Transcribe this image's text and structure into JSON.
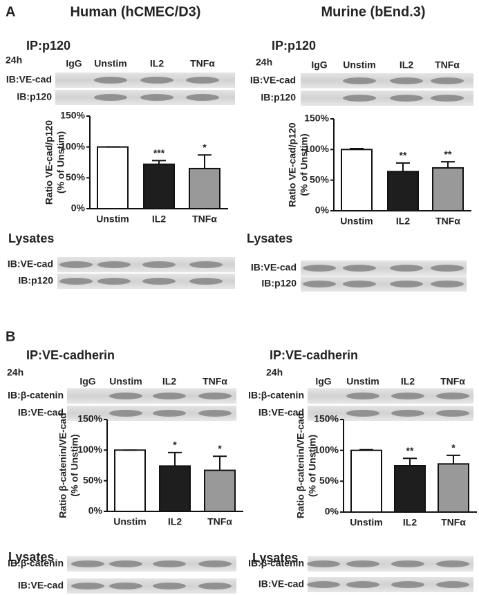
{
  "figure": {
    "panels": [
      {
        "label": "A",
        "titles": [
          "Human (hCMEC/D3)",
          "Murine (bEnd.3)"
        ]
      },
      {
        "label": "B"
      }
    ],
    "blots": [
      {
        "title": "IP:p120",
        "time": "24h",
        "lanes": [
          "IgG",
          "Unstim",
          "IL2",
          "TNFα"
        ],
        "rows": [
          "IB:VE-cad",
          "IB:p120"
        ]
      },
      {
        "title": "IP:p120",
        "time": "24h",
        "lanes": [
          "IgG",
          "Unstim",
          "IL2",
          "TNFα"
        ],
        "rows": [
          "IB:VE-cad",
          "IB:p120"
        ]
      },
      {
        "title": "Lysates",
        "rows": [
          "IB:VE-cad",
          "IB:p120"
        ]
      },
      {
        "title": "Lysates",
        "rows": [
          "IB:VE-cad",
          "IB:p120"
        ]
      },
      {
        "title": "IP:VE-cadherin",
        "time": "24h",
        "lanes": [
          "IgG",
          "Unstim",
          "IL2",
          "TNFα"
        ],
        "rows": [
          "IB:β-catenin",
          "IB:VE-cad"
        ]
      },
      {
        "title": "IP:VE-cadherin",
        "time": "24h",
        "lanes": [
          "IgG",
          "Unstim",
          "IL2",
          "TNFα"
        ],
        "rows": [
          "IB:β-catenin",
          "IB:VE-cad"
        ]
      },
      {
        "title": "Lysates",
        "rows": [
          "IB:β-catenin",
          "IB:VE-cad"
        ]
      },
      {
        "title": "Lysates",
        "rows": [
          "IB:β-catenin",
          "IB:VE-cad"
        ]
      }
    ]
  },
  "chart_data": [
    {
      "type": "bar",
      "ylabel": [
        "Ratio VE-cad/p120",
        "(% of Unstim)"
      ],
      "categories": [
        "Unstim",
        "IL2",
        "TNFα"
      ],
      "values": [
        100,
        72,
        65
      ],
      "errors": [
        0,
        6,
        22
      ],
      "colors": [
        "#ffffff",
        "#1e1e1e",
        "#999999"
      ],
      "significance": [
        null,
        "***",
        "*"
      ],
      "ylim": [
        0,
        150
      ],
      "yticks": [
        {
          "value": 0,
          "label": "0%"
        },
        {
          "value": 50,
          "label": "50%"
        },
        {
          "value": 100,
          "label": "100%"
        },
        {
          "value": 150,
          "label": "150%"
        }
      ]
    },
    {
      "type": "bar",
      "ylabel": [
        "Ratio VE-cad/p120",
        "(% of Unstim)"
      ],
      "categories": [
        "Unstim",
        "IL2",
        "TNFα"
      ],
      "values": [
        100,
        64,
        70
      ],
      "errors": [
        1.5,
        14,
        10
      ],
      "colors": [
        "#ffffff",
        "#1e1e1e",
        "#999999"
      ],
      "significance": [
        null,
        "**",
        "**"
      ],
      "ylim": [
        0,
        150
      ],
      "yticks": [
        {
          "value": 0,
          "label": "0%"
        },
        {
          "value": 50,
          "label": "50%"
        },
        {
          "value": 100,
          "label": "100%"
        },
        {
          "value": 150,
          "label": "150%"
        }
      ]
    },
    {
      "type": "bar",
      "ylabel": [
        "Ratio β-catenin/VE-cad",
        "(% of Unstim)"
      ],
      "categories": [
        "Unstim",
        "IL2",
        "TNFα"
      ],
      "values": [
        100,
        74,
        67
      ],
      "errors": [
        0,
        22,
        23
      ],
      "colors": [
        "#ffffff",
        "#1e1e1e",
        "#999999"
      ],
      "significance": [
        null,
        "*",
        "*"
      ],
      "ylim": [
        0,
        150
      ],
      "yticks": [
        {
          "value": 0,
          "label": "0%"
        },
        {
          "value": 50,
          "label": "50%"
        },
        {
          "value": 100,
          "label": "100%"
        },
        {
          "value": 150,
          "label": "150%"
        }
      ]
    },
    {
      "type": "bar",
      "ylabel": [
        "Ratio β-catenin/VE-cad",
        "(% of Unstim)"
      ],
      "categories": [
        "Unstim",
        "IL2",
        "TNFα"
      ],
      "values": [
        100,
        75,
        78
      ],
      "errors": [
        1,
        12,
        14
      ],
      "colors": [
        "#ffffff",
        "#1e1e1e",
        "#999999"
      ],
      "significance": [
        null,
        "**",
        "*"
      ],
      "ylim": [
        0,
        150
      ],
      "yticks": [
        {
          "value": 0,
          "label": "0%"
        },
        {
          "value": 50,
          "label": "50%"
        },
        {
          "value": 100,
          "label": "100%"
        },
        {
          "value": 150,
          "label": "150%"
        }
      ]
    }
  ]
}
